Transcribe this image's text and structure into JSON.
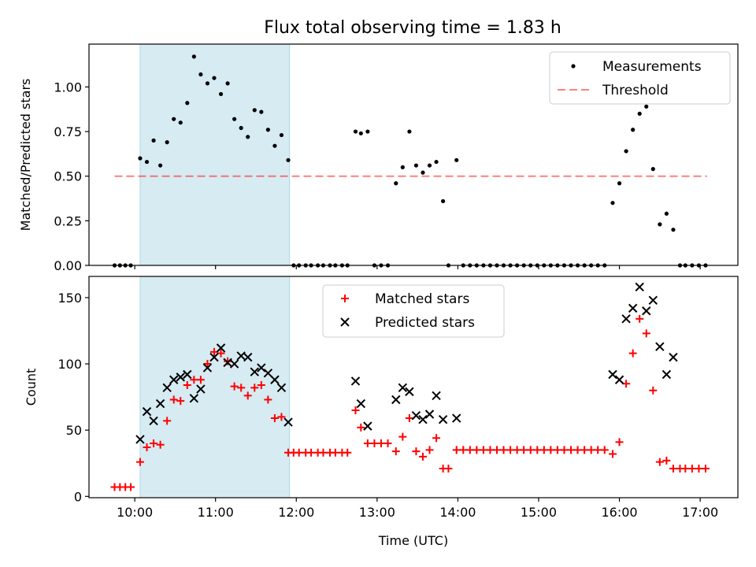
{
  "figure": {
    "title": "Flux total observing time = 1.83 h"
  },
  "colors": {
    "measure": "#000000",
    "threshold": "#ff0000",
    "matched": "#ff0000",
    "predicted": "#000000",
    "span": "#add8e6"
  },
  "chart_data": [
    {
      "type": "scatter",
      "title": "Flux total observing time = 1.83 h",
      "xlabel": "",
      "ylabel": "Matched/Predicted stars",
      "xlim": [
        "09:26",
        "17:28"
      ],
      "ylim": [
        0,
        1.24
      ],
      "yticks": [
        "0.00",
        "0.25",
        "0.50",
        "0.75",
        "1.00"
      ],
      "shaded_span": [
        "10:04",
        "11:55"
      ],
      "legend": {
        "position": "top-right",
        "entries": [
          "Measurements",
          "Threshold"
        ]
      },
      "threshold": {
        "name": "Threshold",
        "value": 0.5,
        "x_start": "09:45",
        "x_end": "17:05"
      },
      "series": [
        {
          "name": "Measurements",
          "points": [
            [
              "09:45",
              0
            ],
            [
              "09:49",
              0
            ],
            [
              "09:53",
              0
            ],
            [
              "09:57",
              0
            ],
            [
              "10:04",
              0.6
            ],
            [
              "10:09",
              0.58
            ],
            [
              "10:14",
              0.7
            ],
            [
              "10:19",
              0.56
            ],
            [
              "10:24",
              0.69
            ],
            [
              "10:29",
              0.82
            ],
            [
              "10:34",
              0.8
            ],
            [
              "10:39",
              0.91
            ],
            [
              "10:44",
              1.17
            ],
            [
              "10:49",
              1.07
            ],
            [
              "10:54",
              1.02
            ],
            [
              "10:59",
              1.05
            ],
            [
              "11:04",
              0.96
            ],
            [
              "11:09",
              1.02
            ],
            [
              "11:14",
              0.82
            ],
            [
              "11:19",
              0.77
            ],
            [
              "11:24",
              0.72
            ],
            [
              "11:29",
              0.87
            ],
            [
              "11:34",
              0.86
            ],
            [
              "11:39",
              0.76
            ],
            [
              "11:44",
              0.67
            ],
            [
              "11:49",
              0.73
            ],
            [
              "11:54",
              0.59
            ],
            [
              "11:58",
              0
            ],
            [
              "12:02",
              0
            ],
            [
              "12:07",
              0
            ],
            [
              "12:11",
              0
            ],
            [
              "12:16",
              0
            ],
            [
              "12:20",
              0
            ],
            [
              "12:25",
              0
            ],
            [
              "12:29",
              0
            ],
            [
              "12:34",
              0
            ],
            [
              "12:38",
              0
            ],
            [
              "12:44",
              0.75
            ],
            [
              "12:48",
              0.74
            ],
            [
              "12:53",
              0.75
            ],
            [
              "12:58",
              0
            ],
            [
              "13:03",
              0
            ],
            [
              "13:08",
              0
            ],
            [
              "13:14",
              0.46
            ],
            [
              "13:19",
              0.55
            ],
            [
              "13:24",
              0.75
            ],
            [
              "13:29",
              0.56
            ],
            [
              "13:34",
              0.52
            ],
            [
              "13:39",
              0.56
            ],
            [
              "13:44",
              0.58
            ],
            [
              "13:49",
              0.36
            ],
            [
              "13:53",
              0
            ],
            [
              "13:59",
              0.59
            ],
            [
              "14:04",
              0
            ],
            [
              "14:09",
              0
            ],
            [
              "14:14",
              0
            ],
            [
              "14:19",
              0
            ],
            [
              "14:24",
              0
            ],
            [
              "14:29",
              0
            ],
            [
              "14:34",
              0
            ],
            [
              "14:39",
              0
            ],
            [
              "14:44",
              0
            ],
            [
              "14:49",
              0
            ],
            [
              "14:54",
              0
            ],
            [
              "14:59",
              0
            ],
            [
              "15:04",
              0
            ],
            [
              "15:09",
              0
            ],
            [
              "15:14",
              0
            ],
            [
              "15:19",
              0
            ],
            [
              "15:24",
              0
            ],
            [
              "15:29",
              0
            ],
            [
              "15:34",
              0
            ],
            [
              "15:39",
              0
            ],
            [
              "15:44",
              0
            ],
            [
              "15:49",
              0
            ],
            [
              "15:55",
              0.35
            ],
            [
              "16:00",
              0.46
            ],
            [
              "16:05",
              0.64
            ],
            [
              "16:10",
              0.76
            ],
            [
              "16:15",
              0.85
            ],
            [
              "16:20",
              0.89
            ],
            [
              "16:25",
              0.54
            ],
            [
              "16:30",
              0.23
            ],
            [
              "16:35",
              0.29
            ],
            [
              "16:40",
              0.2
            ],
            [
              "16:45",
              0
            ],
            [
              "16:49",
              0
            ],
            [
              "16:54",
              0
            ],
            [
              "16:59",
              0
            ],
            [
              "17:04",
              0
            ]
          ]
        }
      ]
    },
    {
      "type": "scatter",
      "title": "",
      "xlabel": "Time (UTC)",
      "ylabel": "Count",
      "xlim": [
        "09:26",
        "17:28"
      ],
      "ylim": [
        -1,
        166
      ],
      "yticks": [
        "0",
        "50",
        "100",
        "150"
      ],
      "xticks": [
        "10:00",
        "11:00",
        "12:00",
        "13:00",
        "14:00",
        "15:00",
        "16:00",
        "17:00"
      ],
      "shaded_span": [
        "10:04",
        "11:55"
      ],
      "legend": {
        "position": "top-center",
        "entries": [
          "Matched stars",
          "Predicted stars"
        ]
      },
      "series": [
        {
          "name": "Matched stars",
          "points": [
            [
              "09:45",
              7
            ],
            [
              "09:49",
              7
            ],
            [
              "09:53",
              7
            ],
            [
              "09:57",
              7
            ],
            [
              "10:04",
              26
            ],
            [
              "10:09",
              37
            ],
            [
              "10:14",
              40
            ],
            [
              "10:19",
              39
            ],
            [
              "10:24",
              57
            ],
            [
              "10:29",
              73
            ],
            [
              "10:34",
              72
            ],
            [
              "10:39",
              84
            ],
            [
              "10:44",
              88
            ],
            [
              "10:49",
              88
            ],
            [
              "10:54",
              100
            ],
            [
              "10:59",
              109
            ],
            [
              "11:04",
              108
            ],
            [
              "11:09",
              102
            ],
            [
              "11:14",
              83
            ],
            [
              "11:19",
              82
            ],
            [
              "11:24",
              76
            ],
            [
              "11:29",
              82
            ],
            [
              "11:34",
              84
            ],
            [
              "11:39",
              73
            ],
            [
              "11:44",
              59
            ],
            [
              "11:49",
              60
            ],
            [
              "11:54",
              33
            ],
            [
              "11:58",
              33
            ],
            [
              "12:02",
              33
            ],
            [
              "12:07",
              33
            ],
            [
              "12:11",
              33
            ],
            [
              "12:16",
              33
            ],
            [
              "12:20",
              33
            ],
            [
              "12:25",
              33
            ],
            [
              "12:29",
              33
            ],
            [
              "12:34",
              33
            ],
            [
              "12:38",
              33
            ],
            [
              "12:44",
              65
            ],
            [
              "12:48",
              52
            ],
            [
              "12:53",
              40
            ],
            [
              "12:58",
              40
            ],
            [
              "13:03",
              40
            ],
            [
              "13:08",
              40
            ],
            [
              "13:14",
              34
            ],
            [
              "13:19",
              45
            ],
            [
              "13:24",
              59
            ],
            [
              "13:29",
              34
            ],
            [
              "13:34",
              30
            ],
            [
              "13:39",
              35
            ],
            [
              "13:44",
              44
            ],
            [
              "13:49",
              21
            ],
            [
              "13:53",
              21
            ],
            [
              "13:59",
              35
            ],
            [
              "14:04",
              35
            ],
            [
              "14:09",
              35
            ],
            [
              "14:14",
              35
            ],
            [
              "14:19",
              35
            ],
            [
              "14:24",
              35
            ],
            [
              "14:29",
              35
            ],
            [
              "14:34",
              35
            ],
            [
              "14:39",
              35
            ],
            [
              "14:44",
              35
            ],
            [
              "14:49",
              35
            ],
            [
              "14:54",
              35
            ],
            [
              "14:59",
              35
            ],
            [
              "15:04",
              35
            ],
            [
              "15:09",
              35
            ],
            [
              "15:14",
              35
            ],
            [
              "15:19",
              35
            ],
            [
              "15:24",
              35
            ],
            [
              "15:29",
              35
            ],
            [
              "15:34",
              35
            ],
            [
              "15:39",
              35
            ],
            [
              "15:44",
              35
            ],
            [
              "15:49",
              35
            ],
            [
              "15:55",
              32
            ],
            [
              "16:00",
              41
            ],
            [
              "16:05",
              85
            ],
            [
              "16:10",
              108
            ],
            [
              "16:15",
              134
            ],
            [
              "16:20",
              123
            ],
            [
              "16:25",
              80
            ],
            [
              "16:30",
              26
            ],
            [
              "16:35",
              27
            ],
            [
              "16:40",
              21
            ],
            [
              "16:45",
              21
            ],
            [
              "16:49",
              21
            ],
            [
              "16:54",
              21
            ],
            [
              "16:59",
              21
            ],
            [
              "17:04",
              21
            ]
          ]
        },
        {
          "name": "Predicted stars",
          "points": [
            [
              "10:04",
              43
            ],
            [
              "10:09",
              64
            ],
            [
              "10:14",
              57
            ],
            [
              "10:19",
              70
            ],
            [
              "10:24",
              82
            ],
            [
              "10:29",
              88
            ],
            [
              "10:34",
              90
            ],
            [
              "10:39",
              92
            ],
            [
              "10:44",
              74
            ],
            [
              "10:49",
              81
            ],
            [
              "10:54",
              97
            ],
            [
              "10:59",
              105
            ],
            [
              "11:04",
              112
            ],
            [
              "11:09",
              101
            ],
            [
              "11:14",
              100
            ],
            [
              "11:19",
              106
            ],
            [
              "11:24",
              105
            ],
            [
              "11:29",
              94
            ],
            [
              "11:34",
              97
            ],
            [
              "11:39",
              93
            ],
            [
              "11:44",
              88
            ],
            [
              "11:49",
              82
            ],
            [
              "11:54",
              56
            ],
            [
              "12:44",
              87
            ],
            [
              "12:48",
              70
            ],
            [
              "12:53",
              53
            ],
            [
              "13:14",
              73
            ],
            [
              "13:19",
              82
            ],
            [
              "13:24",
              79
            ],
            [
              "13:29",
              61
            ],
            [
              "13:34",
              58
            ],
            [
              "13:39",
              62
            ],
            [
              "13:44",
              76
            ],
            [
              "13:49",
              58
            ],
            [
              "13:59",
              59
            ],
            [
              "15:55",
              92
            ],
            [
              "16:00",
              88
            ],
            [
              "16:05",
              134
            ],
            [
              "16:10",
              142
            ],
            [
              "16:15",
              158
            ],
            [
              "16:20",
              140
            ],
            [
              "16:25",
              148
            ],
            [
              "16:30",
              113
            ],
            [
              "16:35",
              92
            ],
            [
              "16:40",
              105
            ]
          ]
        }
      ]
    }
  ]
}
